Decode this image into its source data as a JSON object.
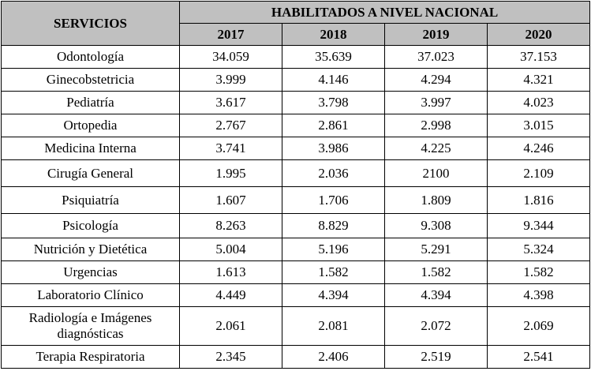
{
  "header": {
    "servicios_label": "SERVICIOS",
    "group_label": "HABILITADOS A NIVEL NACIONAL",
    "years": [
      "2017",
      "2018",
      "2019",
      "2020"
    ]
  },
  "rows": [
    {
      "servicio": "Odontología",
      "values": [
        "34.059",
        "35.639",
        "37.023",
        "37.153"
      ]
    },
    {
      "servicio": "Ginecobstetricia",
      "values": [
        "3.999",
        "4.146",
        "4.294",
        "4.321"
      ]
    },
    {
      "servicio": "Pediatría",
      "values": [
        "3.617",
        "3.798",
        "3.997",
        "4.023"
      ]
    },
    {
      "servicio": "Ortopedia",
      "values": [
        "2.767",
        "2.861",
        "2.998",
        "3.015"
      ]
    },
    {
      "servicio": "Medicina Interna",
      "values": [
        "3.741",
        "3.986",
        "4.225",
        "4.246"
      ]
    },
    {
      "servicio": "Cirugía General",
      "values": [
        "1.995",
        "2.036",
        "2100",
        "2.109"
      ]
    },
    {
      "servicio": "Psiquiatría",
      "values": [
        "1.607",
        "1.706",
        "1.809",
        "1.816"
      ]
    },
    {
      "servicio": "Psicología",
      "values": [
        "8.263",
        "8.829",
        "9.308",
        "9.344"
      ]
    },
    {
      "servicio": "Nutrición y Dietética",
      "values": [
        "5.004",
        "5.196",
        "5.291",
        "5.324"
      ]
    },
    {
      "servicio": "Urgencias",
      "values": [
        "1.613",
        "1.582",
        "1.582",
        "1.582"
      ]
    },
    {
      "servicio": "Laboratorio Clínico",
      "values": [
        "4.449",
        "4.394",
        "4.394",
        "4.398"
      ]
    },
    {
      "servicio": "Radiología e Imágenes diagnósticas",
      "values": [
        "2.061",
        "2.081",
        "2.072",
        "2.069"
      ]
    },
    {
      "servicio": "Terapia Respiratoria",
      "values": [
        "2.345",
        "2.406",
        "2.519",
        "2.541"
      ]
    }
  ]
}
